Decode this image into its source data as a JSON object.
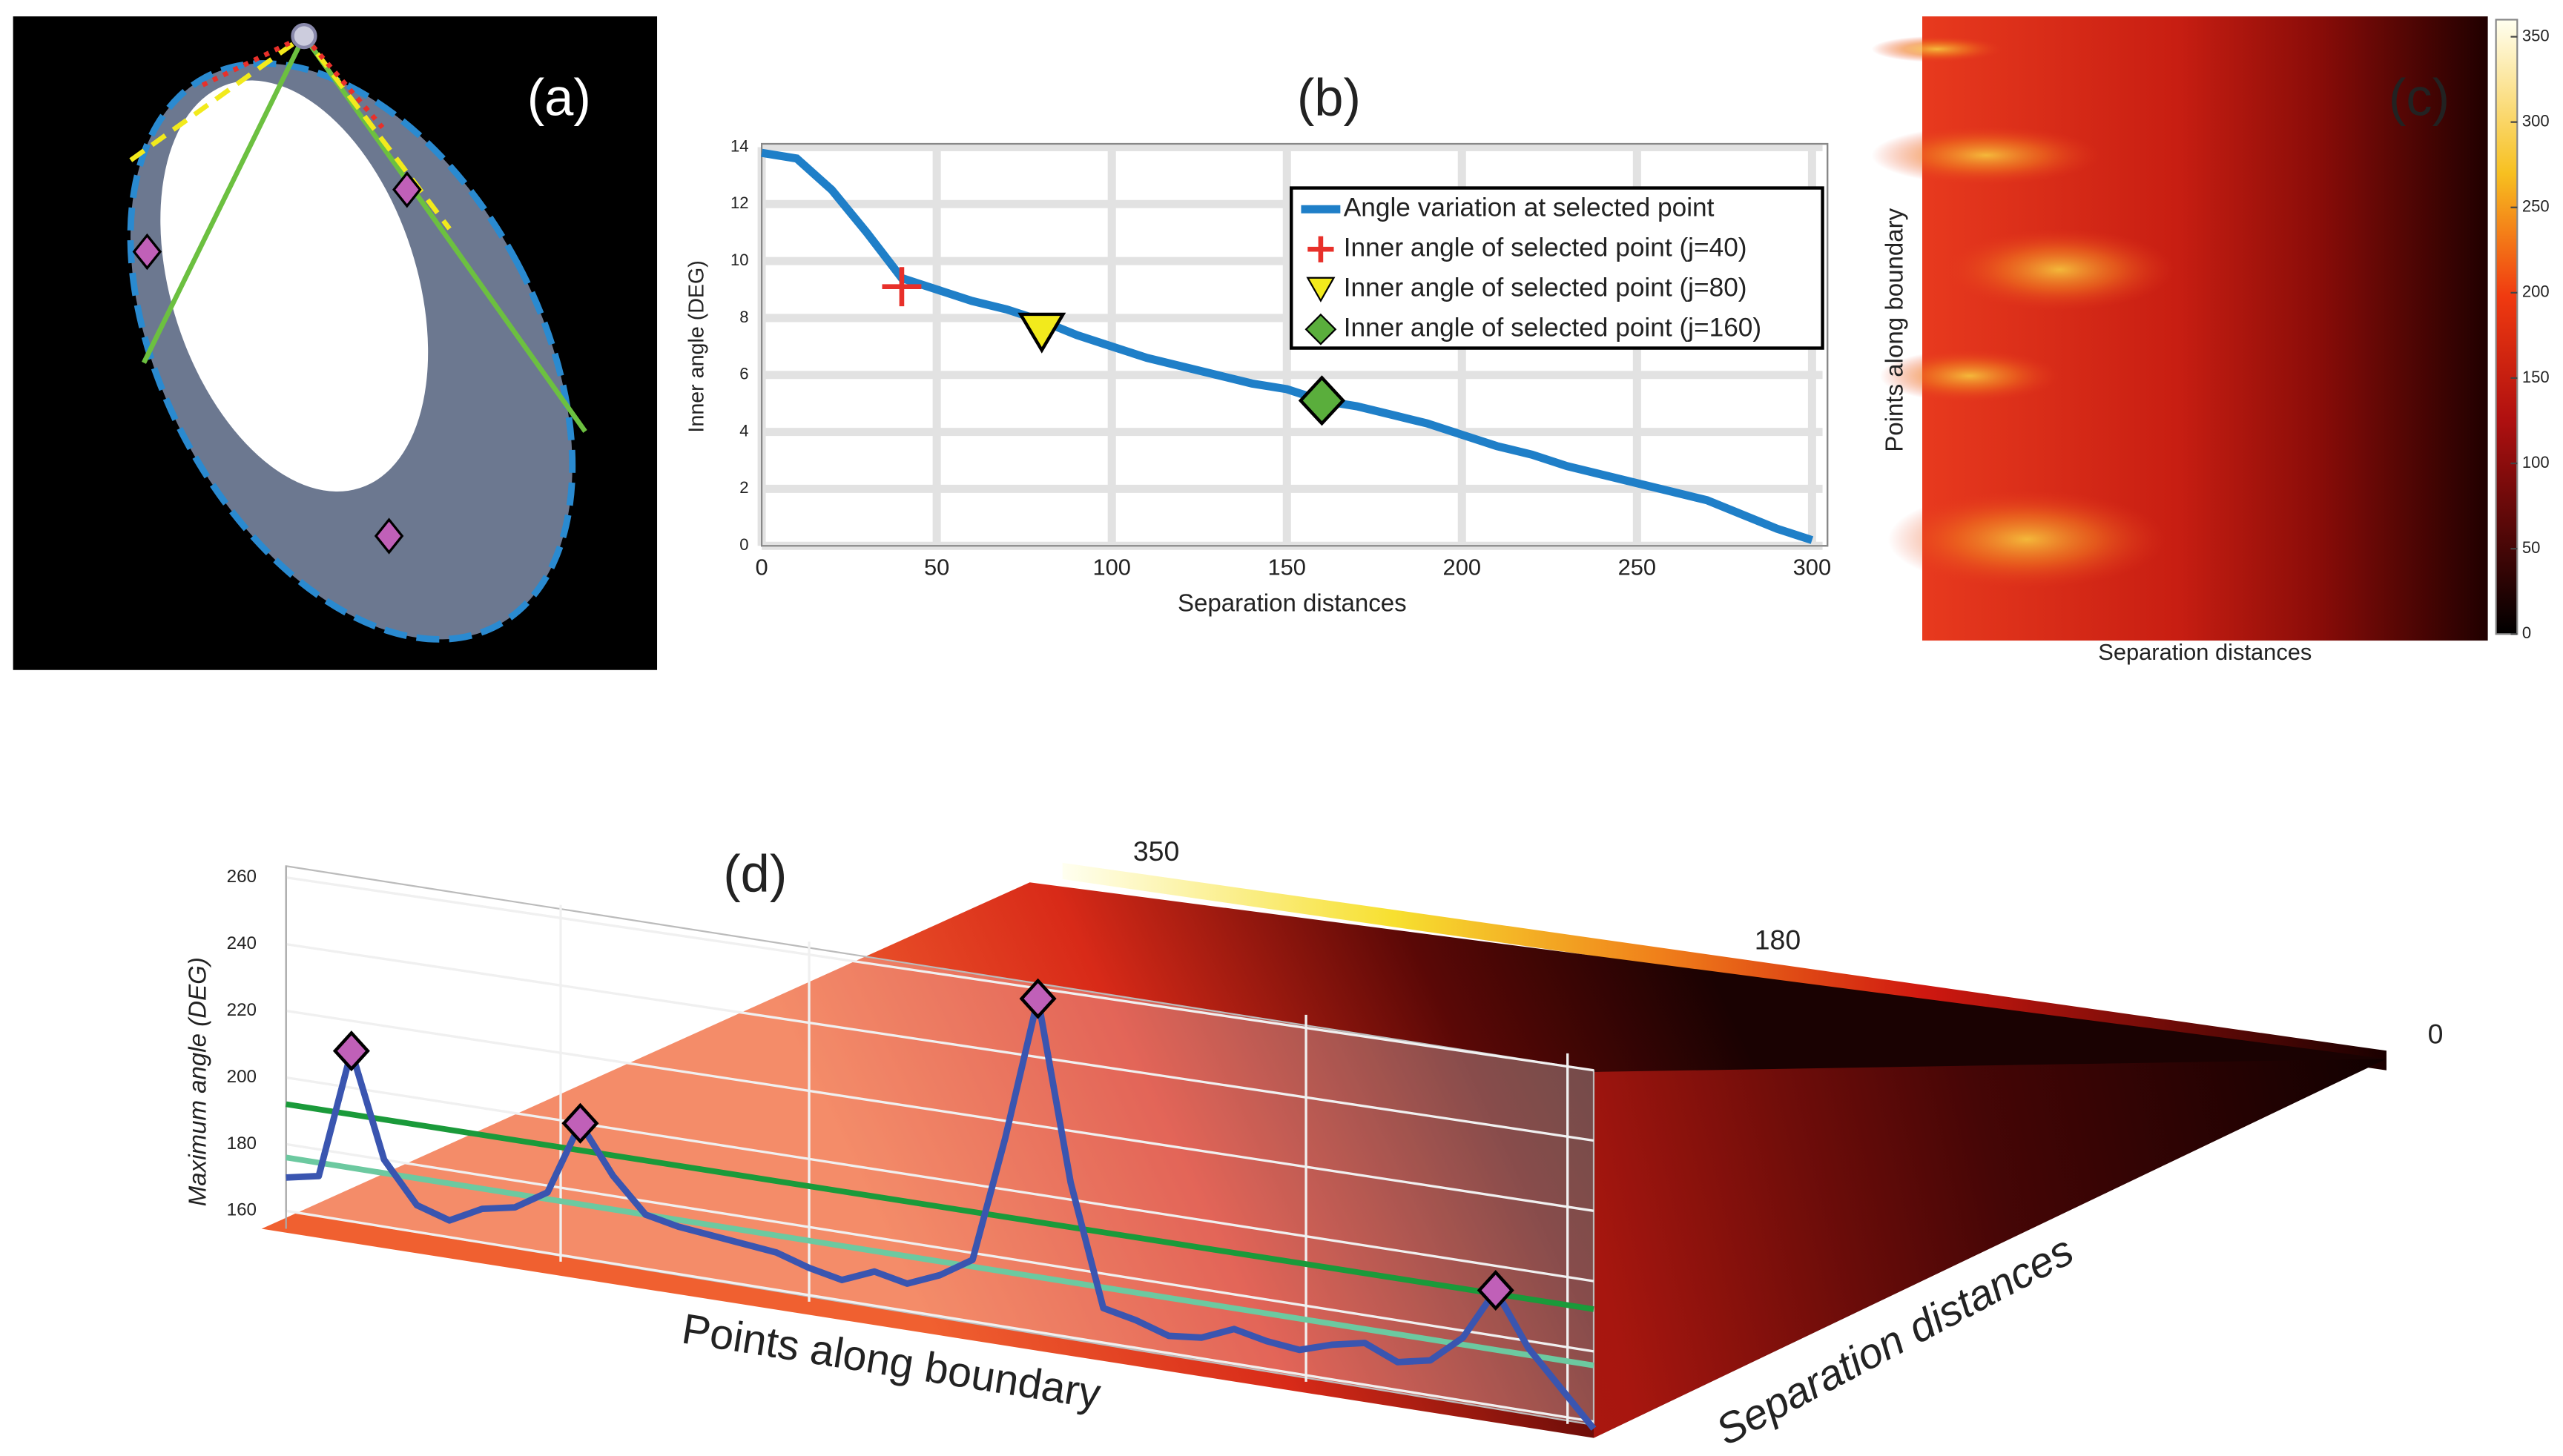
{
  "chart_data": [
    {
      "type": "shape",
      "label": "(a)"
    },
    {
      "type": "line",
      "label": "(b)",
      "xlabel": "Separation distances",
      "ylabel": "Inner angle (DEG)",
      "xlim": [
        0,
        303
      ],
      "ylim": [
        0,
        14
      ],
      "xticks": [
        0,
        50,
        100,
        150,
        200,
        250,
        300
      ],
      "yticks": [
        0,
        2,
        4,
        6,
        8,
        10,
        12,
        14
      ],
      "grid": true,
      "x": [
        0,
        10,
        20,
        30,
        40,
        50,
        60,
        70,
        80,
        90,
        100,
        110,
        120,
        130,
        140,
        150,
        160,
        170,
        180,
        190,
        200,
        210,
        220,
        230,
        240,
        250,
        260,
        270,
        280,
        290,
        300
      ],
      "series": [
        {
          "name": "Angle variation at selected point",
          "color": "#1f7fc8",
          "values": [
            13.8,
            13.6,
            12.5,
            11,
            9.4,
            9,
            8.6,
            8.3,
            7.9,
            7.4,
            7,
            6.6,
            6.3,
            6,
            5.7,
            5.5,
            5.1,
            4.9,
            4.6,
            4.3,
            3.9,
            3.5,
            3.2,
            2.8,
            2.5,
            2.2,
            1.9,
            1.6,
            1.1,
            0.6,
            0.2
          ]
        },
        {
          "name": "Inner angle of selected point (j=40)",
          "color": "#e8302a",
          "marker": "plus",
          "x": [
            40
          ],
          "values": [
            9.1
          ]
        },
        {
          "name": "Inner angle of selected point (j=80)",
          "color": "#f2ea1c",
          "marker": "triangle",
          "x": [
            80
          ],
          "values": [
            7.5
          ]
        },
        {
          "name": "Inner angle of selected point (j=160)",
          "color": "#5aae3c",
          "marker": "diamond",
          "x": [
            160
          ],
          "values": [
            5.1
          ]
        }
      ]
    },
    {
      "type": "heatmap",
      "label": "(c)",
      "xlabel": "Separation distances",
      "ylabel": "Points along boundary",
      "clim": [
        0,
        360
      ],
      "cticks": [
        0,
        50,
        100,
        150,
        200,
        250,
        300,
        350
      ]
    },
    {
      "type": "surface3d",
      "label": "(d)",
      "xlabel": "Points along boundary",
      "ylabel": "Separation distances",
      "zlabel": "Maximum angle (DEG)",
      "zlim": [
        160,
        260
      ],
      "zticks": [
        160,
        180,
        200,
        220,
        240,
        260
      ],
      "clim": [
        0,
        360
      ],
      "cticks": [
        0,
        180,
        350
      ],
      "series": [
        {
          "color": "#3a55b0",
          "values": [
            170,
            172,
            211,
            180,
            168,
            165,
            170,
            172,
            178,
            200,
            186,
            176,
            174,
            173,
            172,
            171,
            168,
            166,
            170,
            168,
            172,
            178,
            215,
            257,
            205,
            170,
            168,
            165,
            166,
            170,
            168,
            167,
            170,
            172,
            168,
            170,
            178,
            193,
            178,
            168,
            158
          ]
        }
      ],
      "thresholds": [
        {
          "value": 192,
          "color": "#1a9a3a"
        },
        {
          "value": 176,
          "color": "#6cc9a0"
        }
      ]
    }
  ]
}
